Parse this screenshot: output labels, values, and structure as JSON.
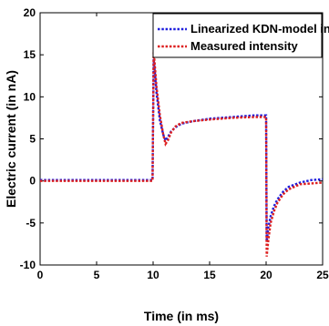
{
  "chart_data": {
    "type": "line",
    "xlabel": "Time (in ms)",
    "ylabel": "Electric current (in nA)",
    "xlim": [
      0,
      25
    ],
    "ylim": [
      -10,
      20
    ],
    "xticks": [
      0,
      5,
      10,
      15,
      20,
      25
    ],
    "yticks": [
      -10,
      -5,
      0,
      5,
      10,
      15,
      20
    ],
    "grid": false,
    "legend_position": "top-right",
    "series": [
      {
        "name": "Linearized KDN-model intensity",
        "color": "#1f1fdd",
        "style": "dotted",
        "x": [
          0,
          9.95,
          10.05,
          10.3,
          10.6,
          10.9,
          11.1,
          11.3,
          11.6,
          12.0,
          12.5,
          13.5,
          15,
          17,
          19,
          20.0,
          20.05,
          20.2,
          20.4,
          20.7,
          21.0,
          21.5,
          22,
          23,
          24,
          25
        ],
        "values": [
          0.1,
          0.1,
          14.5,
          10.5,
          7.2,
          5.5,
          4.8,
          5.2,
          5.9,
          6.4,
          6.8,
          7.1,
          7.4,
          7.6,
          7.8,
          7.8,
          -7.2,
          -5.5,
          -4.2,
          -3.0,
          -2.2,
          -1.3,
          -0.7,
          -0.2,
          0.1,
          0.2
        ]
      },
      {
        "name": "Measured intensity",
        "color": "#dd1f1f",
        "style": "dotted",
        "x": [
          0,
          9.95,
          10.05,
          10.3,
          10.6,
          10.9,
          11.1,
          11.3,
          11.6,
          12.0,
          12.5,
          13.5,
          15,
          17,
          19,
          20.0,
          20.05,
          20.2,
          20.4,
          20.7,
          21.0,
          21.5,
          22,
          23,
          24,
          25
        ],
        "values": [
          0.0,
          0.0,
          15.5,
          11.2,
          7.8,
          5.5,
          4.4,
          4.8,
          5.8,
          6.5,
          6.9,
          7.1,
          7.3,
          7.5,
          7.6,
          7.6,
          -9.0,
          -7.0,
          -5.0,
          -3.6,
          -2.6,
          -1.6,
          -1.0,
          -0.4,
          -0.3,
          -0.2
        ]
      }
    ]
  }
}
